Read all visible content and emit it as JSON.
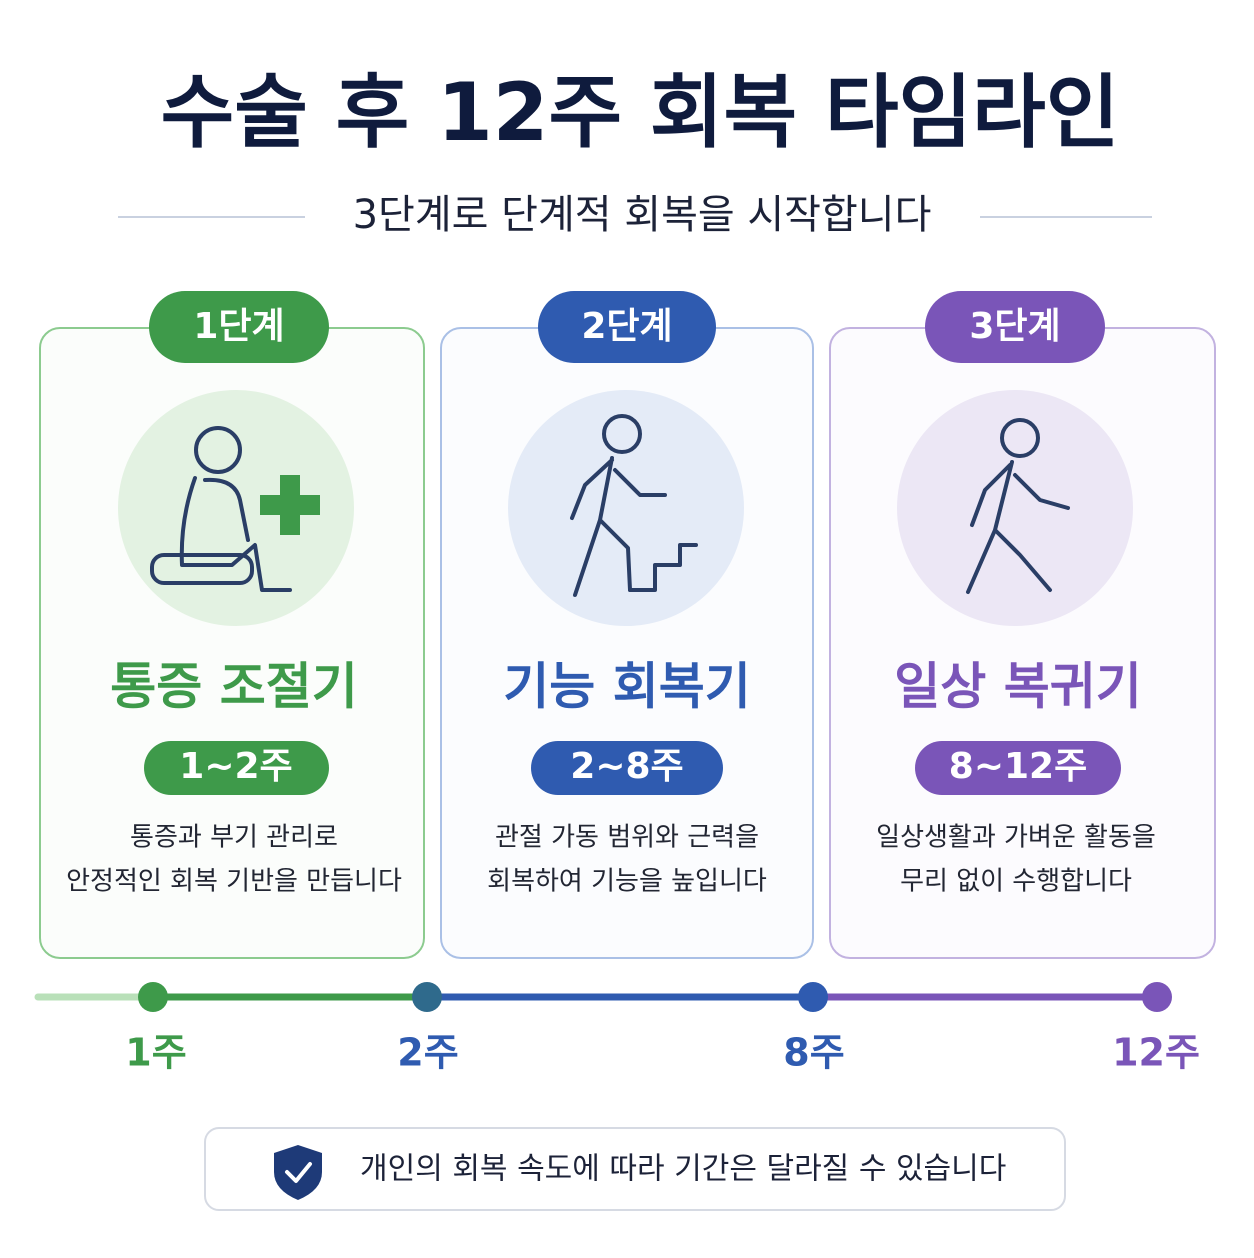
{
  "header": {
    "title": "수술 후 12주 회복 타임라인",
    "subtitle": "3단계로 단계적 회복을 시작합니다"
  },
  "stages": [
    {
      "badge": "1단계",
      "name": "통증 조절기",
      "duration": "1~2주",
      "description": [
        "통증과 부기 관리로",
        "안정적인 회복 기반을 만듭니다"
      ]
    },
    {
      "badge": "2단계",
      "name": "기능 회복기",
      "duration": "2~8주",
      "description": [
        "관절 가동 범위와 근력을",
        "회복하여 기능을 높입니다"
      ]
    },
    {
      "badge": "3단계",
      "name": "일상 복귀기",
      "duration": "8~12주",
      "description": [
        "일상생활과 가벼운 활동을",
        "무리 없이 수행합니다"
      ]
    }
  ],
  "timeline": {
    "labels": [
      "1주",
      "2주",
      "8주",
      "12주"
    ]
  },
  "note": "개인의 회복 속도에 따라 기간은 달라질 수 있습니다"
}
